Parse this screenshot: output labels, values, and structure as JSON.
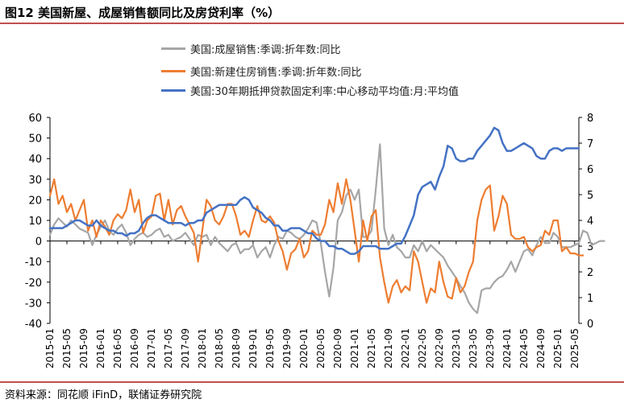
{
  "title": "图12 美国新屋、成屋销售额同比及房贷利率（%）",
  "source": "资料来源：同花顺 iFinD，联储证券研究院",
  "colors": {
    "existing": "#a6a6a6",
    "new": "#ed7d31",
    "rate": "#4472c4",
    "accent": "#c0504d"
  },
  "chart_data": {
    "type": "line",
    "x_tick_labels": [
      "2015-01",
      "2015-05",
      "2015-09",
      "2016-01",
      "2016-05",
      "2016-09",
      "2017-01",
      "2017-05",
      "2017-09",
      "2018-01",
      "2018-05",
      "2018-09",
      "2019-01",
      "2019-05",
      "2019-09",
      "2020-01",
      "2020-05",
      "2020-09",
      "2021-01",
      "2021-05",
      "2021-09",
      "2022-01",
      "2022-05",
      "2022-09",
      "2023-01",
      "2023-05",
      "2023-09",
      "2024-01",
      "2024-05",
      "2024-09",
      "2025-01",
      "2025-05"
    ],
    "x_start": "2015-01",
    "x_end": "2025-06",
    "y_left": {
      "min": -40,
      "max": 60,
      "ticks": [
        -40,
        -30,
        -20,
        -10,
        0,
        10,
        20,
        30,
        40,
        50,
        60
      ]
    },
    "y_right": {
      "min": 0,
      "max": 8,
      "ticks": [
        0,
        1,
        2,
        3,
        4,
        5,
        6,
        7,
        8
      ]
    },
    "grid": false,
    "legend_position": "top-center",
    "series": [
      {
        "name": "美国:成屋销售:季调:折年数:同比",
        "axis": "left",
        "color": "#a6a6a6",
        "values": [
          3,
          8,
          11,
          9,
          7,
          10,
          8,
          6,
          5,
          4,
          -2,
          3,
          7,
          10,
          5,
          3,
          6,
          8,
          4,
          -2,
          1,
          3,
          4,
          2,
          3,
          5,
          6,
          2,
          3,
          0,
          1,
          2,
          4,
          1,
          -2,
          3,
          2,
          3,
          -2,
          2,
          -1,
          -3,
          -5,
          -2,
          -1,
          -6,
          -4,
          -4,
          -2,
          -8,
          -5,
          -3,
          -8,
          -2,
          2,
          1,
          5,
          4,
          2,
          1,
          3,
          6,
          10,
          9,
          -1,
          -15,
          -27,
          -13,
          10,
          14,
          22,
          25,
          20,
          25,
          2,
          2,
          5,
          25,
          47,
          6,
          -2,
          3,
          -3,
          -5,
          -8,
          -8,
          -2,
          -5,
          0,
          -5,
          -2,
          -4,
          -6,
          -8,
          -12,
          -15,
          -18,
          -22,
          -25,
          -30,
          -33,
          -35,
          -24,
          -23,
          -23,
          -20,
          -18,
          -17,
          -14,
          -10,
          -15,
          -10,
          -5,
          -4,
          -7,
          -2,
          2,
          -1,
          -1,
          4,
          2,
          -3,
          -3,
          -3,
          -2,
          -1,
          5,
          4,
          -2,
          -1,
          0,
          0
        ]
      },
      {
        "name": "美国:新建住房销售:季调:折年数:同比",
        "axis": "left",
        "color": "#ed7d31",
        "values": [
          22,
          30,
          18,
          22,
          14,
          18,
          10,
          15,
          20,
          5,
          10,
          2,
          10,
          7,
          3,
          10,
          13,
          11,
          15,
          25,
          14,
          20,
          4,
          10,
          12,
          22,
          23,
          10,
          20,
          8,
          15,
          17,
          12,
          8,
          4,
          -10,
          5,
          20,
          17,
          10,
          8,
          12,
          18,
          18,
          12,
          3,
          5,
          2,
          10,
          17,
          10,
          9,
          12,
          9,
          0,
          -5,
          -14,
          -6,
          -4,
          1,
          -8,
          -5,
          5,
          3,
          3,
          8,
          20,
          14,
          28,
          18,
          30,
          20,
          5,
          -10,
          10,
          0,
          12,
          15,
          -8,
          -20,
          -30,
          -22,
          -19,
          -25,
          -22,
          -24,
          -5,
          -10,
          -20,
          -30,
          -23,
          -25,
          -10,
          -20,
          -27,
          -28,
          -18,
          -25,
          -22,
          -15,
          -10,
          10,
          20,
          25,
          27,
          5,
          12,
          22,
          18,
          3,
          1,
          1,
          2,
          -3,
          -5,
          -3,
          -2,
          5,
          3,
          10,
          10,
          -5,
          -3,
          -6,
          -6,
          -7,
          -7
        ]
      },
      {
        "name": "美国:30年期抵押贷款固定利率:中心移动平均值:月:平均值",
        "axis": "right",
        "color": "#4472c4",
        "values": [
          3.7,
          3.7,
          3.7,
          3.7,
          3.8,
          3.9,
          4.0,
          4.0,
          3.9,
          3.8,
          3.8,
          4.0,
          3.8,
          3.7,
          3.6,
          3.6,
          3.5,
          3.5,
          3.4,
          3.5,
          3.5,
          3.6,
          3.9,
          4.1,
          4.2,
          4.2,
          4.1,
          4.0,
          3.9,
          3.9,
          3.9,
          3.9,
          3.8,
          3.9,
          3.9,
          4.0,
          4.0,
          4.3,
          4.4,
          4.5,
          4.6,
          4.6,
          4.6,
          4.6,
          4.6,
          4.8,
          4.9,
          4.8,
          4.5,
          4.4,
          4.3,
          4.1,
          4.0,
          3.8,
          3.8,
          3.6,
          3.6,
          3.7,
          3.7,
          3.7,
          3.6,
          3.5,
          3.5,
          3.3,
          3.2,
          3.2,
          3.0,
          3.0,
          2.9,
          2.9,
          2.8,
          2.7,
          2.7,
          2.8,
          3.0,
          3.0,
          3.0,
          3.0,
          2.9,
          2.9,
          2.9,
          3.0,
          3.1,
          3.1,
          3.4,
          3.8,
          4.2,
          5.0,
          5.3,
          5.4,
          5.5,
          5.2,
          5.7,
          6.1,
          6.9,
          6.8,
          6.4,
          6.3,
          6.3,
          6.4,
          6.4,
          6.7,
          6.9,
          7.1,
          7.3,
          7.6,
          7.5,
          7.0,
          6.7,
          6.7,
          6.8,
          6.9,
          7.0,
          6.9,
          6.8,
          6.5,
          6.4,
          6.4,
          6.7,
          6.8,
          6.8,
          6.7,
          6.8,
          6.8,
          6.8,
          6.8
        ]
      }
    ]
  }
}
